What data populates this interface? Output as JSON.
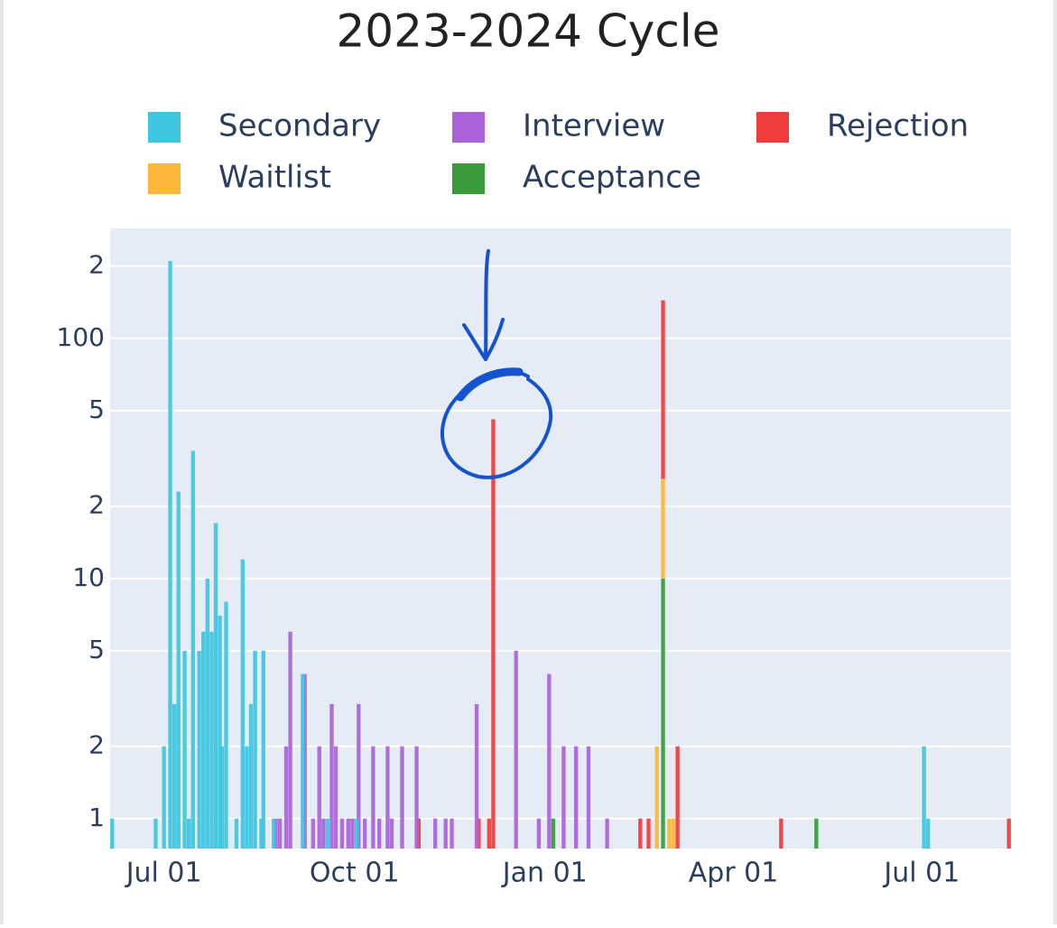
{
  "chart_data": {
    "type": "bar",
    "title": "2023-2024 Cycle",
    "barmode": "stack",
    "log_y": true,
    "grid": true,
    "legend_position": "top",
    "xlim": [
      "2023-06-05",
      "2024-08-13"
    ],
    "xticks": [
      {
        "value": "2023-07-01",
        "label": "Jul 01"
      },
      {
        "value": "2023-10-01",
        "label": "Oct 01"
      },
      {
        "value": "2024-01-01",
        "label": "Jan 01"
      },
      {
        "value": "2024-04-01",
        "label": "Apr 01"
      },
      {
        "value": "2024-07-01",
        "label": "Jul 01"
      }
    ],
    "ylim": [
      0.75,
      287
    ],
    "yticks": [
      1,
      2,
      5,
      10,
      {
        "value": 20,
        "label": "2"
      },
      {
        "value": 50,
        "label": "5"
      },
      100,
      {
        "value": 200,
        "label": "2"
      }
    ],
    "series": [
      {
        "name": "Secondary",
        "color": "#3ec6e0",
        "x": [
          "2023-06-06",
          "2023-06-27",
          "2023-07-01",
          "2023-07-04",
          "2023-07-06",
          "2023-07-08",
          "2023-07-11",
          "2023-07-13",
          "2023-07-15",
          "2023-07-18",
          "2023-07-20",
          "2023-07-22",
          "2023-07-24",
          "2023-07-26",
          "2023-07-28",
          "2023-07-29",
          "2023-07-31",
          "2023-08-05",
          "2023-08-08",
          "2023-08-10",
          "2023-08-12",
          "2023-08-14",
          "2023-08-17",
          "2023-08-18",
          "2023-08-23",
          "2023-09-06",
          "2023-09-18",
          "2023-10-02",
          "2024-07-02",
          "2024-07-04"
        ],
        "values": [
          1,
          1,
          2,
          210,
          3,
          23,
          5,
          1,
          34,
          5,
          6,
          10,
          6,
          17,
          7,
          2,
          8,
          1,
          12,
          2,
          3,
          5,
          1,
          5,
          1,
          4,
          1,
          1,
          2,
          1
        ]
      },
      {
        "name": "Interview",
        "color": "#ab63da",
        "x": [
          "2023-08-24",
          "2023-08-26",
          "2023-08-29",
          "2023-08-31",
          "2023-09-07",
          "2023-09-11",
          "2023-09-14",
          "2023-09-16",
          "2023-09-20",
          "2023-09-22",
          "2023-09-25",
          "2023-09-28",
          "2023-09-30",
          "2023-10-03",
          "2023-10-06",
          "2023-10-10",
          "2023-10-13",
          "2023-10-17",
          "2023-10-19",
          "2023-10-24",
          "2023-10-31",
          "2023-11-09",
          "2023-11-14",
          "2023-11-17",
          "2023-11-29",
          "2023-12-18",
          "2023-12-29",
          "2024-01-03",
          "2024-01-10",
          "2024-01-16",
          "2024-01-22",
          "2024-01-31"
        ],
        "values": [
          1,
          1,
          2,
          6,
          4,
          1,
          2,
          1,
          3,
          2,
          1,
          1,
          1,
          3,
          1,
          2,
          1,
          2,
          1,
          2,
          2,
          1,
          1,
          1,
          3,
          5,
          1,
          4,
          2,
          2,
          2,
          1
        ]
      },
      {
        "name": "Rejection",
        "color": "#f03c3c",
        "x": [
          "2023-11-01",
          "2023-11-30",
          "2023-12-05",
          "2023-12-07",
          "2024-02-16",
          "2024-02-20",
          "2024-02-27",
          "2024-03-05",
          "2024-04-24",
          "2024-08-12"
        ],
        "values": [
          1,
          1,
          1,
          46,
          1,
          1,
          118,
          2,
          1,
          1
        ]
      },
      {
        "name": "Waitlist",
        "color": "#fbb738",
        "x": [
          "2024-02-24",
          "2024-02-27",
          "2024-03-01",
          "2024-03-03"
        ],
        "values": [
          2,
          16,
          1,
          1
        ]
      },
      {
        "name": "Acceptance",
        "color": "#3a9a3a",
        "x": [
          "2024-01-05",
          "2024-02-27",
          "2024-05-11"
        ],
        "values": [
          1,
          10,
          1
        ]
      }
    ]
  }
}
